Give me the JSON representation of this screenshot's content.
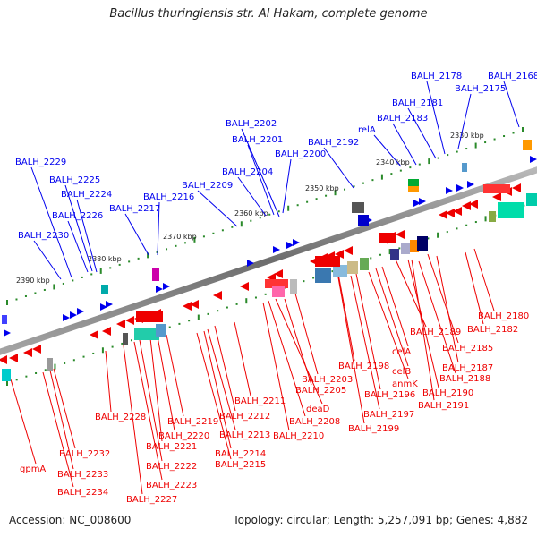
{
  "title": "Bacillus thuringiensis str. Al Hakam, complete genome",
  "accession": "Accession: NC_008600",
  "topology": "Topology: circular; Length: 5,257,091 bp; Genes: 4,882",
  "colors": {
    "forward": "#0000ee",
    "reverse": "#ee0000",
    "backbone": "#808080",
    "tick": "#2a8a2a"
  },
  "ticks": [
    "2330 kbp",
    "2340 kbp",
    "2350 kbp",
    "2360 kbp",
    "2370 kbp",
    "2380 kbp",
    "2390 kbp"
  ],
  "top_labels": [
    "BALH_2168",
    "BALH_2178",
    "BALH_2175",
    "BALH_2181",
    "BALH_2183",
    "relA",
    "BALH_2192",
    "BALH_2202",
    "BALH_2201",
    "BALH_2200",
    "BALH_2204",
    "BALH_2209",
    "BALH_2216",
    "BALH_2217",
    "BALH_2229",
    "BALH_2225",
    "BALH_2224",
    "BALH_2226",
    "BALH_2230"
  ],
  "bottom_labels": [
    "BALH_2180",
    "BALH_2182",
    "BALH_2189",
    "BALH_2185",
    "BALH_2187",
    "BALH_2188",
    "celA",
    "celB",
    "BALH_2198",
    "anmK",
    "BALH_2196",
    "BALH_2190",
    "BALH_2191",
    "BALH_2197",
    "BALH_2199",
    "BALH_2203",
    "BALH_2205",
    "BALH_2211",
    "deaD",
    "BALH_2208",
    "BALH_2210",
    "BALH_2212",
    "BALH_2213",
    "BALH_2214",
    "BALH_2215",
    "BALH_2219",
    "BALH_2220",
    "BALH_2221",
    "BALH_2222",
    "BALH_2223",
    "BALH_2227",
    "BALH_2228",
    "BALH_2232",
    "BALH_2233",
    "BALH_2234",
    "gpmA"
  ]
}
